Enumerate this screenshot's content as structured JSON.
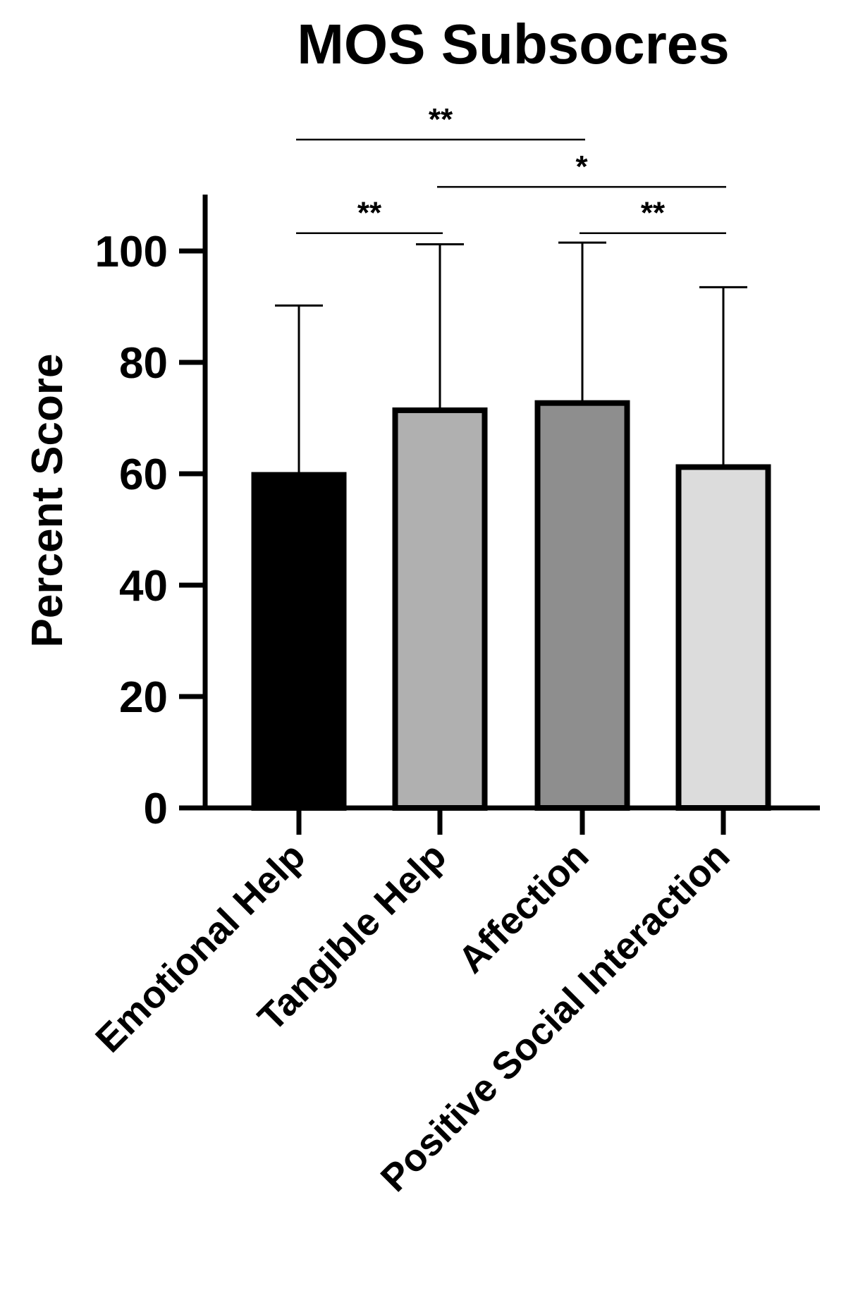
{
  "chart_data": {
    "type": "bar",
    "title": "MOS Subsocres",
    "xlabel": "",
    "ylabel": "Percent Score",
    "ylim": [
      0,
      110
    ],
    "yticks": [
      0,
      20,
      40,
      60,
      80,
      100
    ],
    "ytick_labels": [
      "0",
      "20",
      "40",
      "60",
      "80",
      "100"
    ],
    "categories": [
      "Emotional Help",
      "Tangible Help",
      "Affection",
      "Positive Social Interaction"
    ],
    "values": [
      59.8,
      71.4,
      72.7,
      61.2
    ],
    "error_upper": [
      90.2,
      101.2,
      101.5,
      93.5
    ],
    "colors": [
      "#000000",
      "#b0b0b0",
      "#8e8e8e",
      "#dcdcdc"
    ],
    "significance": [
      {
        "from": 0,
        "to": 2,
        "label": "**",
        "y": 120
      },
      {
        "from": 1,
        "to": 3,
        "label": "*",
        "y": 111.5
      },
      {
        "from": 0,
        "to": 1,
        "label": "**",
        "y": 103.2
      },
      {
        "from": 2,
        "to": 3,
        "label": "**",
        "y": 103.2
      }
    ]
  }
}
